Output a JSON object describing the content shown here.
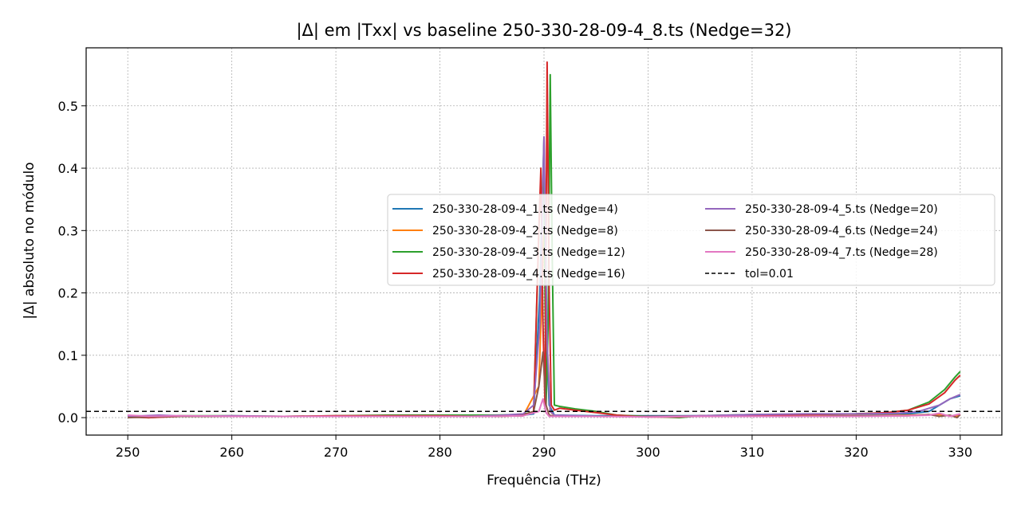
{
  "chart_data": {
    "type": "line",
    "title": "|Δ| em |Txx| vs baseline 250-330-28-09-4_8.ts (Nedge=32)",
    "xlabel": "Frequência (THz)",
    "ylabel": "|Δ| absoluto no módulo",
    "xlim": [
      246,
      334
    ],
    "ylim": [
      -0.028,
      0.593
    ],
    "xticks": [
      250,
      260,
      270,
      280,
      290,
      300,
      310,
      320,
      330
    ],
    "yticks": [
      0.0,
      0.1,
      0.2,
      0.3,
      0.4,
      0.5
    ],
    "xtick_labels": [
      "250",
      "260",
      "270",
      "280",
      "290",
      "300",
      "310",
      "320",
      "330"
    ],
    "ytick_labels": [
      "0.0",
      "0.1",
      "0.2",
      "0.3",
      "0.4",
      "0.5"
    ],
    "grid": true,
    "legend_position": "center-right",
    "series": [
      {
        "name": "250-330-28-09-4_1.ts (Nedge=4)",
        "color": "#1f77b4",
        "points": [
          [
            250,
            0.003
          ],
          [
            255,
            0.002
          ],
          [
            260,
            0.002
          ],
          [
            265,
            0.002
          ],
          [
            270,
            0.002
          ],
          [
            275,
            0.002
          ],
          [
            280,
            0.002
          ],
          [
            285,
            0.003
          ],
          [
            288,
            0.004
          ],
          [
            289,
            0.006
          ],
          [
            289.6,
            0.2
          ],
          [
            290,
            0.45
          ],
          [
            290.2,
            0.15
          ],
          [
            290.5,
            0.02
          ],
          [
            291,
            0.004
          ],
          [
            295,
            0.003
          ],
          [
            300,
            0.003
          ],
          [
            305,
            0.003
          ],
          [
            310,
            0.004
          ],
          [
            315,
            0.005
          ],
          [
            320,
            0.006
          ],
          [
            325,
            0.006
          ],
          [
            327,
            0.01
          ],
          [
            329,
            0.03
          ],
          [
            330,
            0.035
          ]
        ]
      },
      {
        "name": "250-330-28-09-4_2.ts (Nedge=8)",
        "color": "#ff7f0e",
        "points": [
          [
            250,
            0.002
          ],
          [
            255,
            0.002
          ],
          [
            260,
            0.002
          ],
          [
            265,
            0.002
          ],
          [
            270,
            0.002
          ],
          [
            275,
            0.002
          ],
          [
            280,
            0.002
          ],
          [
            285,
            0.002
          ],
          [
            288,
            0.003
          ],
          [
            289.5,
            0.05
          ],
          [
            290,
            0.3
          ],
          [
            290.3,
            0.12
          ],
          [
            290.6,
            0.01
          ],
          [
            291,
            0.003
          ],
          [
            295,
            0.002
          ],
          [
            300,
            0.002
          ],
          [
            305,
            0.002
          ],
          [
            310,
            0.002
          ],
          [
            315,
            0.003
          ],
          [
            320,
            0.003
          ],
          [
            325,
            0.004
          ],
          [
            328,
            0.005
          ],
          [
            329.5,
            0.002
          ],
          [
            330,
            0.004
          ]
        ]
      },
      {
        "name": "250-330-28-09-4_3.ts (Nedge=12)",
        "color": "#2ca02c",
        "points": [
          [
            250,
            0.002
          ],
          [
            252,
            0.0
          ],
          [
            255,
            0.003
          ],
          [
            260,
            0.003
          ],
          [
            265,
            0.002
          ],
          [
            270,
            0.003
          ],
          [
            275,
            0.004
          ],
          [
            280,
            0.004
          ],
          [
            285,
            0.004
          ],
          [
            288,
            0.005
          ],
          [
            289,
            0.01
          ],
          [
            289.6,
            0.35
          ],
          [
            290,
            0.38
          ],
          [
            290.2,
            0.02
          ],
          [
            290.4,
            0.15
          ],
          [
            290.6,
            0.55
          ],
          [
            290.8,
            0.25
          ],
          [
            291,
            0.02
          ],
          [
            291.5,
            0.018
          ],
          [
            293,
            0.014
          ],
          [
            295,
            0.01
          ],
          [
            297,
            0.004
          ],
          [
            300,
            0.002
          ],
          [
            303,
            0.0
          ],
          [
            305,
            0.003
          ],
          [
            310,
            0.005
          ],
          [
            315,
            0.005
          ],
          [
            320,
            0.006
          ],
          [
            323,
            0.008
          ],
          [
            325,
            0.012
          ],
          [
            327,
            0.025
          ],
          [
            328.5,
            0.045
          ],
          [
            329.5,
            0.065
          ],
          [
            330,
            0.074
          ]
        ]
      },
      {
        "name": "250-330-28-09-4_4.ts (Nedge=16)",
        "color": "#d62728",
        "points": [
          [
            250,
            0.001
          ],
          [
            252,
            0.0
          ],
          [
            255,
            0.002
          ],
          [
            260,
            0.002
          ],
          [
            265,
            0.002
          ],
          [
            270,
            0.003
          ],
          [
            275,
            0.003
          ],
          [
            280,
            0.003
          ],
          [
            283,
            0.002
          ],
          [
            285,
            0.003
          ],
          [
            288,
            0.004
          ],
          [
            289,
            0.01
          ],
          [
            289.5,
            0.3
          ],
          [
            289.7,
            0.4
          ],
          [
            289.9,
            0.15
          ],
          [
            290.1,
            0.02
          ],
          [
            290.3,
            0.57
          ],
          [
            290.5,
            0.2
          ],
          [
            290.7,
            0.02
          ],
          [
            291,
            0.012
          ],
          [
            291.5,
            0.015
          ],
          [
            293,
            0.012
          ],
          [
            295,
            0.008
          ],
          [
            297,
            0.004
          ],
          [
            300,
            0.001
          ],
          [
            303,
            0.001
          ],
          [
            305,
            0.003
          ],
          [
            310,
            0.004
          ],
          [
            315,
            0.005
          ],
          [
            320,
            0.006
          ],
          [
            323,
            0.008
          ],
          [
            325,
            0.012
          ],
          [
            327,
            0.022
          ],
          [
            328.5,
            0.04
          ],
          [
            329.5,
            0.06
          ],
          [
            330,
            0.068
          ]
        ]
      },
      {
        "name": "250-330-28-09-4_5.ts (Nedge=20)",
        "color": "#9467bd",
        "points": [
          [
            250,
            0.002
          ],
          [
            253,
            0.004
          ],
          [
            256,
            0.002
          ],
          [
            260,
            0.003
          ],
          [
            265,
            0.002
          ],
          [
            270,
            0.002
          ],
          [
            275,
            0.002
          ],
          [
            280,
            0.002
          ],
          [
            283,
            0.002
          ],
          [
            286,
            0.004
          ],
          [
            288,
            0.006
          ],
          [
            289,
            0.02
          ],
          [
            289.6,
            0.15
          ],
          [
            290,
            0.45
          ],
          [
            290.3,
            0.12
          ],
          [
            290.6,
            0.01
          ],
          [
            291,
            0.004
          ],
          [
            295,
            0.002
          ],
          [
            300,
            0.002
          ],
          [
            305,
            0.003
          ],
          [
            310,
            0.005
          ],
          [
            315,
            0.006
          ],
          [
            320,
            0.006
          ],
          [
            324,
            0.007
          ],
          [
            326,
            0.01
          ],
          [
            328,
            0.02
          ],
          [
            329,
            0.03
          ],
          [
            330,
            0.037
          ]
        ]
      },
      {
        "name": "250-330-28-09-4_6.ts (Nedge=24)",
        "color": "#8c564b",
        "points": [
          [
            250,
            0.0
          ],
          [
            252,
            0.001
          ],
          [
            255,
            0.002
          ],
          [
            260,
            0.002
          ],
          [
            265,
            0.002
          ],
          [
            270,
            0.002
          ],
          [
            275,
            0.002
          ],
          [
            280,
            0.002
          ],
          [
            285,
            0.002
          ],
          [
            288,
            0.003
          ],
          [
            289,
            0.01
          ],
          [
            289.5,
            0.05
          ],
          [
            289.9,
            0.105
          ],
          [
            290.2,
            0.02
          ],
          [
            290.5,
            0.004
          ],
          [
            291,
            0.002
          ],
          [
            295,
            0.002
          ],
          [
            300,
            0.002
          ],
          [
            305,
            0.002
          ],
          [
            310,
            0.002
          ],
          [
            315,
            0.002
          ],
          [
            320,
            0.003
          ],
          [
            325,
            0.003
          ],
          [
            327,
            0.005
          ],
          [
            328,
            0.002
          ],
          [
            329,
            0.004
          ],
          [
            329.7,
            0.0
          ],
          [
            330,
            0.005
          ]
        ]
      },
      {
        "name": "250-330-28-09-4_7.ts (Nedge=28)",
        "color": "#e377c2",
        "points": [
          [
            250,
            0.004
          ],
          [
            252,
            0.002
          ],
          [
            255,
            0.003
          ],
          [
            260,
            0.002
          ],
          [
            265,
            0.002
          ],
          [
            270,
            0.002
          ],
          [
            275,
            0.002
          ],
          [
            280,
            0.002
          ],
          [
            285,
            0.002
          ],
          [
            288,
            0.003
          ],
          [
            289.5,
            0.01
          ],
          [
            289.9,
            0.03
          ],
          [
            290.2,
            0.008
          ],
          [
            290.5,
            0.002
          ],
          [
            291,
            0.002
          ],
          [
            295,
            0.002
          ],
          [
            300,
            0.001
          ],
          [
            305,
            0.002
          ],
          [
            310,
            0.002
          ],
          [
            315,
            0.002
          ],
          [
            320,
            0.002
          ],
          [
            325,
            0.003
          ],
          [
            327,
            0.004
          ],
          [
            328,
            0.007
          ],
          [
            329,
            0.002
          ],
          [
            330,
            0.006
          ]
        ]
      }
    ],
    "reference_line": {
      "name": "tol=0.01",
      "y": 0.01,
      "style": "dashed",
      "color": "#000000"
    }
  }
}
